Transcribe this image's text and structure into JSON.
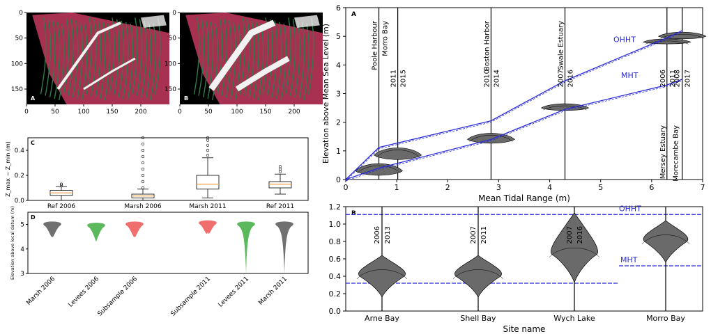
{
  "chart_data": [
    {
      "type": "heatmap",
      "panel": "A",
      "xticks": [
        "0",
        "50",
        "100",
        "150",
        "200"
      ],
      "yticks": [
        "0",
        "50",
        "100",
        "150"
      ],
      "xlim": [
        0,
        250
      ],
      "ylim": [
        180,
        0
      ],
      "colors": {
        "background": "#000000",
        "marsh": "#a83050",
        "channel": "#2f7a4a",
        "water": "#f2f2f2"
      }
    },
    {
      "type": "heatmap",
      "panel": "B",
      "xticks": [
        "0",
        "50",
        "100",
        "150",
        "200"
      ],
      "yticks": [
        "0",
        "50",
        "100",
        "150"
      ],
      "xlim": [
        0,
        250
      ],
      "ylim": [
        180,
        0
      ],
      "colors": {
        "background": "#000000",
        "marsh": "#a83050",
        "channel": "#2f7a4a",
        "water": "#f2f2f2"
      }
    },
    {
      "type": "box",
      "panel": "C",
      "ylabel": "Z_max − Z_min (m)",
      "ylim": [
        0,
        0.5
      ],
      "yticks": [
        "0.0",
        "0.2",
        "0.4"
      ],
      "categories": [
        "Ref 2006",
        "Marsh 2006",
        "Marsh 2011",
        "Ref 2011"
      ],
      "boxes": [
        {
          "min": 0.0,
          "q1": 0.04,
          "median": 0.06,
          "q3": 0.08,
          "max": 0.11,
          "outliers": [
            0.12,
            0.13
          ]
        },
        {
          "min": 0.0,
          "q1": 0.02,
          "median": 0.035,
          "q3": 0.05,
          "max": 0.09,
          "outliers": [
            0.1,
            0.15,
            0.2,
            0.25,
            0.3,
            0.35,
            0.4,
            0.45,
            0.5
          ]
        },
        {
          "min": 0.02,
          "q1": 0.09,
          "median": 0.13,
          "q3": 0.2,
          "max": 0.34,
          "outliers": [
            0.36,
            0.4,
            0.44,
            0.48,
            0.5
          ]
        },
        {
          "min": 0.05,
          "q1": 0.1,
          "median": 0.13,
          "q3": 0.15,
          "max": 0.21,
          "outliers": [
            0.23,
            0.25,
            0.27
          ]
        }
      ],
      "box_color": "#f0a040"
    },
    {
      "type": "violin",
      "panel": "D",
      "ylabel": "Elevation above local datum (m)",
      "ylim": [
        3,
        5.5
      ],
      "yticks": [
        "3",
        "4",
        "5"
      ],
      "categories": [
        "Marsh 2006",
        "Levees 2006",
        "Subsample 2006",
        "Subsample 2011",
        "Levees 2011",
        "Marsh 2011"
      ],
      "colors": [
        "#707070",
        "#5cb85c",
        "#f06e6e",
        "#f06e6e",
        "#5cb85c",
        "#707070"
      ],
      "centers": [
        5.0,
        4.95,
        5.0,
        5.05,
        5.0,
        5.0
      ],
      "mins": [
        4.5,
        4.3,
        4.5,
        4.7,
        3.0,
        3.0
      ]
    },
    {
      "type": "line",
      "panel": "A",
      "xlabel": "Mean Tidal Range (m)",
      "ylabel": "Elevation above Mean Sea Level (m)",
      "xlim": [
        0,
        7
      ],
      "ylim": [
        0,
        6
      ],
      "xticks": [
        "0",
        "1",
        "2",
        "3",
        "4",
        "5",
        "6",
        "7"
      ],
      "yticks": [
        "0",
        "1",
        "2",
        "3",
        "4",
        "5",
        "6"
      ],
      "series": [
        {
          "name": "OHHT",
          "color": "#2a2ad8",
          "x": [
            0,
            0.65,
            2.85,
            4.3,
            6.3,
            6.6
          ],
          "y": [
            0,
            1.12,
            2.05,
            3.45,
            4.95,
            5.2
          ]
        },
        {
          "name": "MHT",
          "color": "#2a2ad8",
          "x": [
            0,
            0.65,
            2.85,
            4.3,
            6.3,
            6.6
          ],
          "y": [
            0,
            0.4,
            1.4,
            2.45,
            3.3,
            3.5
          ]
        }
      ],
      "sites": [
        {
          "name": "Poole Harbour",
          "x": 0.65,
          "years": []
        },
        {
          "name": "Morro Bay",
          "x": 1.02,
          "years": [
            "2011",
            "2015"
          ]
        },
        {
          "name": "Boston Harbor",
          "x": 2.85,
          "years": [
            "2010",
            "2014"
          ]
        },
        {
          "name": "Swale Estuary",
          "x": 4.3,
          "years": [
            "2007",
            "2016"
          ]
        },
        {
          "name": "Mersey Estuary",
          "x": 6.3,
          "years": [
            "2006",
            "2011"
          ]
        },
        {
          "name": "Morecambe Bay",
          "x": 6.6,
          "years": [
            "2008",
            "2017"
          ]
        }
      ],
      "violins": [
        {
          "x": 0.65,
          "center": 0.3,
          "spread": 0.35
        },
        {
          "x": 1.02,
          "center": 0.85,
          "spread": 0.35
        },
        {
          "x": 2.85,
          "center": 1.4,
          "spread": 0.3
        },
        {
          "x": 4.3,
          "center": 2.5,
          "spread": 0.2
        },
        {
          "x": 6.3,
          "center": 4.8,
          "spread": 0.15
        },
        {
          "x": 6.6,
          "center": 5.0,
          "spread": 0.2
        }
      ],
      "labels": {
        "ohht": "OHHT",
        "mht": "MHT"
      }
    },
    {
      "type": "violin",
      "panel": "B",
      "xlabel": "Site name",
      "ylim": [
        0,
        1.2
      ],
      "yticks": [
        "0.0",
        "0.2",
        "0.4",
        "0.6",
        "0.8",
        "1.0",
        "1.2"
      ],
      "categories": [
        "Arne Bay",
        "Shell Bay",
        "Wych Lake",
        "Morro Bay"
      ],
      "years": [
        [
          "2006",
          "2013"
        ],
        [
          "2007",
          "2011"
        ],
        [
          "2007",
          "2016"
        ],
        []
      ],
      "centers": [
        0.4,
        0.4,
        0.65,
        0.8
      ],
      "ohht": 1.11,
      "mht": 0.32,
      "mht_morro": 0.52,
      "labels": {
        "ohht": "OHHT",
        "mht": "MHT"
      }
    }
  ]
}
